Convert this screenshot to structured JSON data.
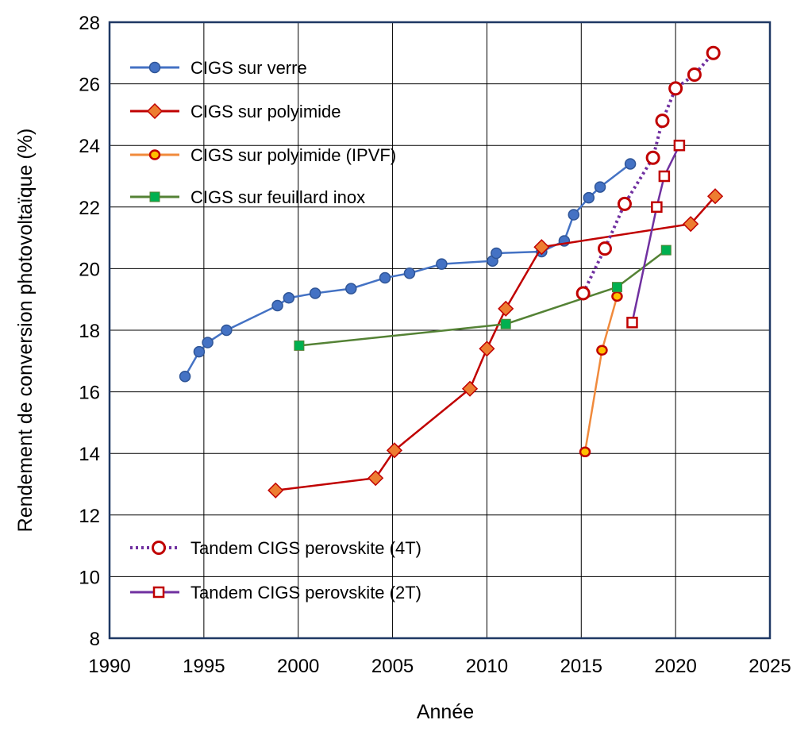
{
  "chart_data": {
    "type": "line",
    "title": "",
    "xlabel": "Année",
    "ylabel": "Rendement de conversion photovoltaïque (%)",
    "xlim": [
      1990,
      2025
    ],
    "ylim": [
      8,
      28
    ],
    "xticks": [
      1990,
      1995,
      2000,
      2005,
      2010,
      2015,
      2020,
      2025
    ],
    "yticks": [
      8,
      10,
      12,
      14,
      16,
      18,
      20,
      22,
      24,
      26,
      28
    ],
    "grid": true,
    "legend_placement": "top-left and bottom-left inside plot",
    "series": [
      {
        "name": "CIGS sur verre",
        "line": "#4472C4",
        "marker": "circle",
        "marker_fill": "#4472C4",
        "marker_stroke": "#2F5597",
        "dash": "solid",
        "x": [
          1994.0,
          1994.75,
          1995.2,
          1996.2,
          1998.9,
          1999.5,
          2000.9,
          2002.8,
          2004.6,
          2005.9,
          2007.6,
          2010.3,
          2010.5,
          2012.9,
          2014.1,
          2014.6,
          2015.4,
          2016.0,
          2017.6
        ],
        "y": [
          16.5,
          17.3,
          17.6,
          18.0,
          18.8,
          19.05,
          19.2,
          19.35,
          19.7,
          19.85,
          20.15,
          20.25,
          20.5,
          20.55,
          20.9,
          21.75,
          22.3,
          22.65,
          23.4
        ]
      },
      {
        "name": "CIGS sur polyimide",
        "line": "#C00000",
        "marker": "diamond",
        "marker_fill": "#ED7D31",
        "marker_stroke": "#C00000",
        "dash": "solid",
        "x": [
          1998.8,
          2004.1,
          2005.1,
          2009.1,
          2010.0,
          2011.0,
          2012.9,
          2020.8,
          2022.1
        ],
        "y": [
          12.8,
          13.2,
          14.1,
          16.1,
          17.4,
          18.7,
          20.7,
          21.45,
          22.35
        ]
      },
      {
        "name": "CIGS sur polyimide (IPVF)",
        "line": "#F08A3C",
        "marker": "circle-small",
        "marker_fill": "#FFC000",
        "marker_stroke": "#C00000",
        "dash": "solid",
        "x": [
          2015.2,
          2016.1,
          2016.9
        ],
        "y": [
          14.05,
          17.35,
          19.1
        ]
      },
      {
        "name": "CIGS sur feuillard inox",
        "line": "#548235",
        "marker": "square",
        "marker_fill": "#00B050",
        "marker_stroke": "#548235",
        "dash": "solid",
        "x": [
          2000.05,
          2011.0,
          2016.9,
          2019.5
        ],
        "y": [
          17.5,
          18.2,
          19.4,
          20.6
        ]
      },
      {
        "name": "Tandem CIGS perovskite (4T)",
        "line": "#7030A0",
        "marker": "circle-open",
        "marker_fill": "#FFFFFF",
        "marker_stroke": "#C00000",
        "dash": "dotted",
        "x": [
          2015.1,
          2016.25,
          2017.3,
          2018.8,
          2019.3,
          2020.0,
          2021.0,
          2022.0
        ],
        "y": [
          19.2,
          20.65,
          22.1,
          23.6,
          24.8,
          25.85,
          26.3,
          27.0
        ]
      },
      {
        "name": "Tandem CIGS perovskite (2T)",
        "line": "#7030A0",
        "marker": "square-open",
        "marker_fill": "#FFFFFF",
        "marker_stroke": "#C00000",
        "dash": "solid",
        "x": [
          2017.7,
          2019.0,
          2019.4,
          2020.2
        ],
        "y": [
          18.25,
          22.0,
          23.0,
          24.0
        ]
      }
    ],
    "frame_color": "#1F3864"
  }
}
